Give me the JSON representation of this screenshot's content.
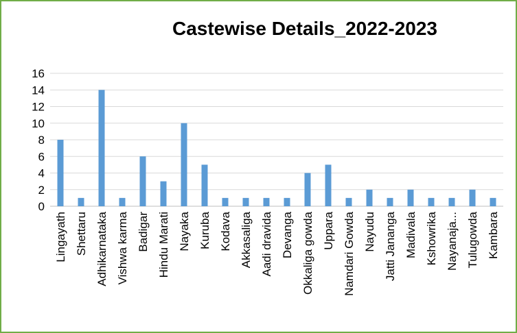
{
  "chart_data": {
    "type": "bar",
    "title": "Castewise Details_2022-2023",
    "xlabel": "",
    "ylabel": "",
    "ylim": [
      0,
      16
    ],
    "yticks": [
      0,
      2,
      4,
      6,
      8,
      10,
      12,
      14,
      16
    ],
    "grid": true,
    "legend": "none",
    "bar_color": "#5b9bd5",
    "categories": [
      "Lingayath",
      "Shettaru",
      "Adhikarnataka",
      "Vishwa karma",
      "Badigar",
      "Hindu Marati",
      "Nayaka",
      "Kuruba",
      "Kodava",
      "Akkasaliga",
      "Aadi dravida",
      "Devanga",
      "Okkaliga gowda",
      "Uppara",
      "Namdari Gowda",
      "Nayudu",
      "Jatti Jananga",
      "Madivala",
      "Kshowrika",
      "Nayanaja...",
      "Tulugowda",
      "Kambara"
    ],
    "values": [
      8,
      1,
      14,
      1,
      6,
      3,
      10,
      5,
      1,
      1,
      1,
      1,
      4,
      5,
      1,
      2,
      1,
      2,
      1,
      1,
      2,
      1
    ]
  }
}
